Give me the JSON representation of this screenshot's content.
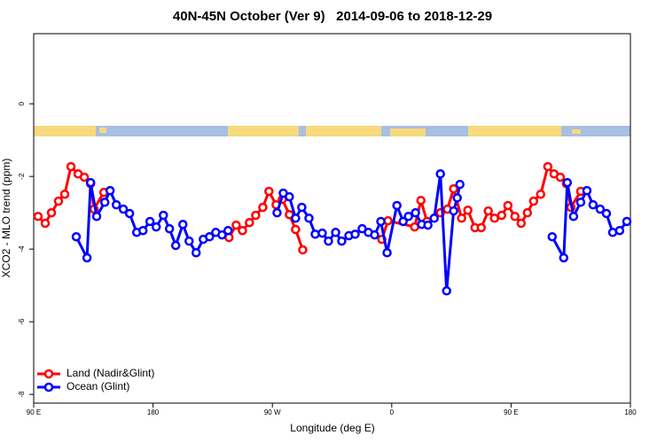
{
  "chart_data": {
    "type": "line",
    "title": "40N-45N October (Ver 9)   2014-09-06 to 2018-12-29",
    "xlabel": "Longitude (deg E)",
    "ylabel": "XCO2 - MLO trend (ppm)",
    "xlim": [
      90,
      540
    ],
    "ylim": [
      -8.24,
      1.93
    ],
    "xticks": [
      {
        "value": 90,
        "label": "90 E"
      },
      180,
      {
        "value": 270,
        "label": "90 W"
      },
      {
        "value": 360,
        "label": "0"
      },
      {
        "value": 450,
        "label": "90 E"
      },
      {
        "value": 540,
        "label": "180"
      }
    ],
    "yticks": [
      -8,
      -6,
      -4,
      -2,
      0
    ],
    "legend": "bottom-left",
    "series": [
      {
        "name": "Land (Nadir&Glint)",
        "color": "#ff0000",
        "x": [
          93.3,
          98.7,
          103.4,
          108.7,
          113.4,
          118.1,
          123.5,
          128.2,
          132.9,
          135.5,
          142.9,
          null,
          237.3,
          242.7,
          247.4,
          252.7,
          257.4,
          262.8,
          267.4,
          272.8,
          277.5,
          282.8,
          287.5,
          292.9,
          null,
          352.5,
          357.2,
          377.3,
          382.0,
          386.6,
          396.7,
          402.0,
          406.7,
          412.7,
          417.4,
          422.8,
          427.5,
          432.8,
          437.5,
          442.9,
          447.6,
          452.9,
          457.6,
          462.3,
          467.0,
          472.3,
          477.7,
          482.4,
          487.1,
          491.8,
          495.1,
          502.5
        ],
        "values": [
          -3.1,
          -3.29,
          -3.0,
          -2.68,
          -2.49,
          -1.73,
          -1.93,
          -2.02,
          -2.2,
          -2.9,
          -2.44,
          null,
          -3.68,
          -3.34,
          -3.49,
          -3.27,
          -3.07,
          -2.85,
          -2.41,
          -2.78,
          -2.63,
          -3.05,
          -3.46,
          -4.02,
          null,
          -3.73,
          -3.22,
          -3.39,
          -2.66,
          -3.24,
          -3.0,
          -2.9,
          -2.34,
          -3.15,
          -2.93,
          -3.41,
          -3.41,
          -2.95,
          -3.15,
          -3.07,
          -2.8,
          -3.1,
          -3.29,
          -3.0,
          -2.68,
          -2.49,
          -1.73,
          -1.93,
          -2.02,
          -2.2,
          -2.85,
          -2.41
        ]
      },
      {
        "name": "Ocean (Glint)",
        "color": "#0000ff",
        "x": [
          122.1,
          130.2,
          132.9,
          137.5,
          143.6,
          147.6,
          152.3,
          157.6,
          162.3,
          167.7,
          172.4,
          177.7,
          182.4,
          187.8,
          192.4,
          197.1,
          202.5,
          207.2,
          212.5,
          217.9,
          222.6,
          227.3,
          232.0,
          236.6,
          null,
          273.5,
          278.2,
          282.8,
          287.5,
          292.2,
          297.6,
          302.3,
          307.6,
          312.3,
          317.7,
          322.3,
          327.7,
          332.4,
          337.7,
          342.4,
          347.1,
          351.8,
          356.5,
          363.9,
          368.6,
          372.6,
          377.9,
          382.6,
          387.3,
          392.0,
          396.7,
          401.4,
          406.7,
          409.4,
          411.4,
          null,
          481.0,
          489.7,
          492.4,
          497.1,
          502.5,
          507.2,
          511.8,
          517.2,
          521.9,
          526.6,
          531.9,
          537.3
        ],
        "values": [
          -3.66,
          -4.24,
          -2.17,
          -3.1,
          -2.71,
          -2.39,
          -2.78,
          -2.9,
          -3.02,
          -3.54,
          -3.49,
          -3.24,
          -3.39,
          -3.07,
          -3.44,
          -3.9,
          -3.32,
          -3.78,
          -4.1,
          -3.73,
          -3.66,
          -3.54,
          -3.61,
          -3.49,
          null,
          -3.0,
          -2.46,
          -2.56,
          -3.15,
          -2.85,
          -3.15,
          -3.59,
          -3.56,
          -3.78,
          -3.54,
          -3.78,
          -3.63,
          -3.59,
          -3.44,
          -3.54,
          -3.61,
          -3.24,
          -4.1,
          -2.8,
          -3.24,
          -3.1,
          -3.0,
          -3.32,
          -3.34,
          -3.15,
          -1.93,
          -5.15,
          -2.95,
          -2.59,
          -2.22,
          null,
          -3.66,
          -4.24,
          -2.17,
          -3.1,
          -2.71,
          -2.39,
          -2.78,
          -2.9,
          -3.02,
          -3.54,
          -3.49,
          -3.24
        ]
      }
    ]
  }
}
